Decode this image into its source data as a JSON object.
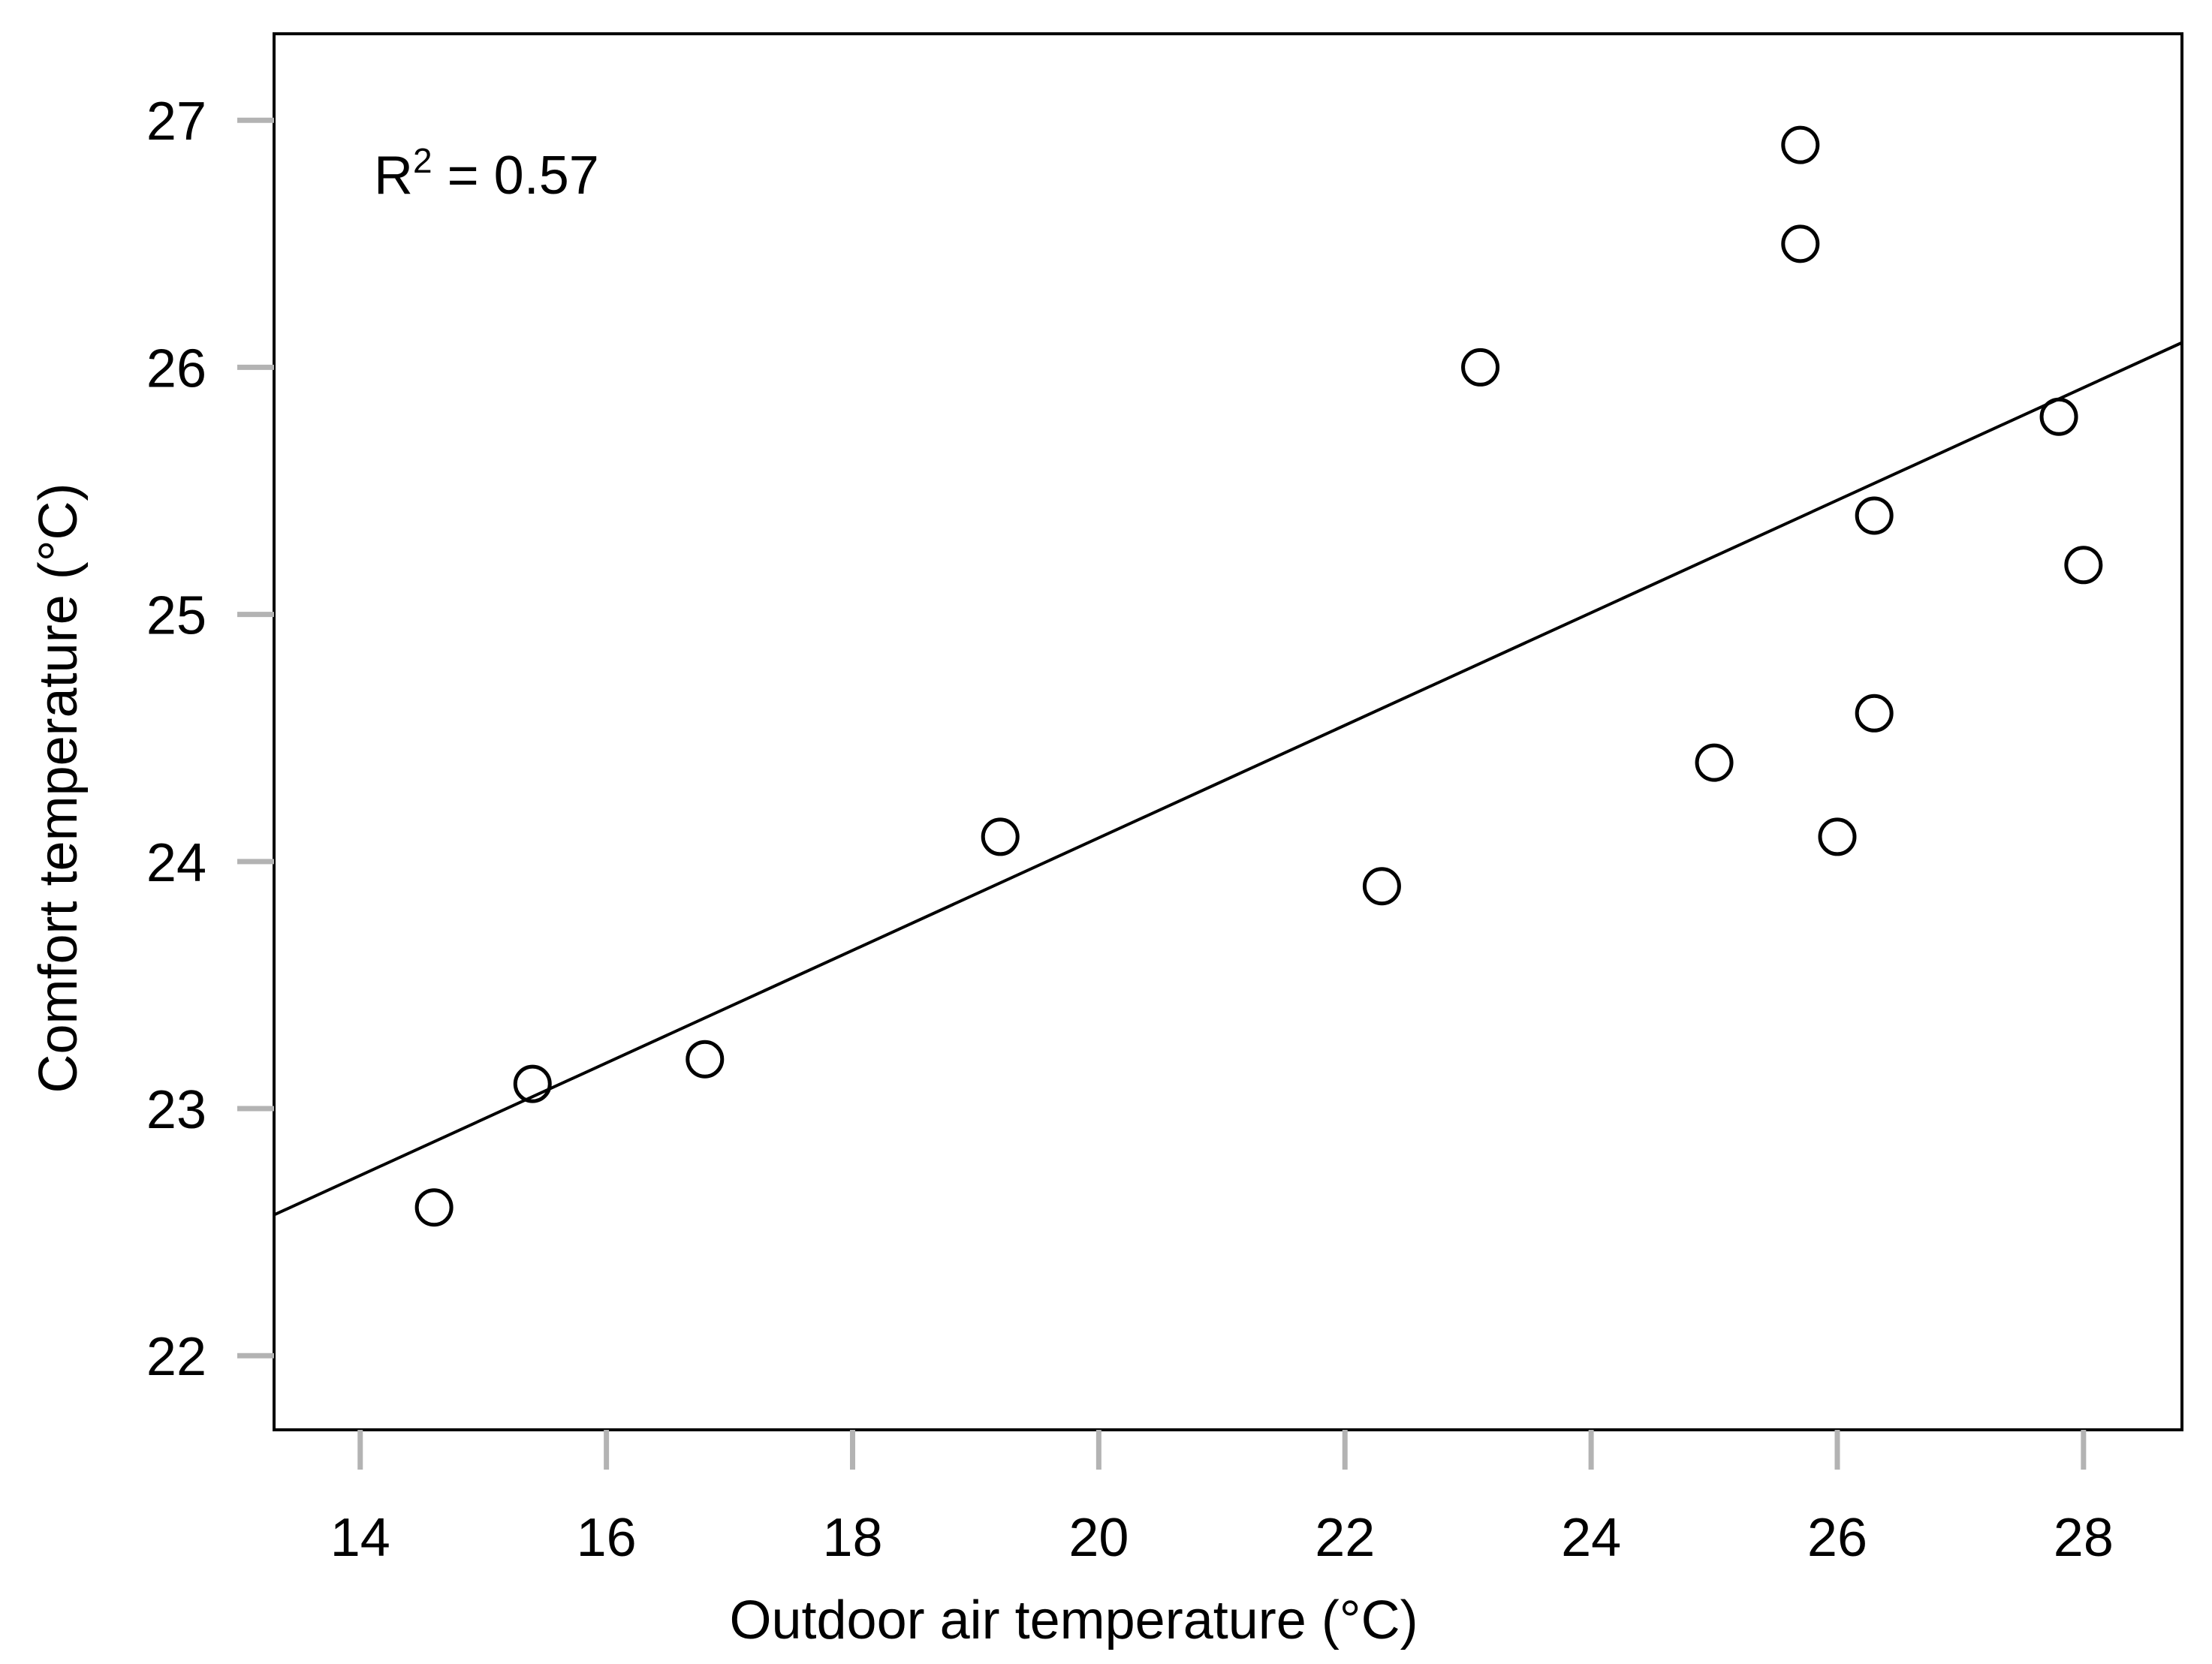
{
  "chart_data": {
    "type": "scatter",
    "title": "",
    "xlabel": "Outdoor air temperature (°C)",
    "ylabel": "Comfort temperature (°C)",
    "xlim": [
      13.3,
      28.8
    ],
    "ylim": [
      21.7,
      27.35
    ],
    "x_ticks": [
      14,
      16,
      18,
      20,
      22,
      24,
      26,
      28
    ],
    "y_ticks": [
      22,
      23,
      24,
      25,
      26,
      27
    ],
    "grid": false,
    "marker": "open-circle",
    "colors": {
      "marker": "#000000",
      "line": "#000000",
      "tick_mark": "#b3b3b3",
      "frame": "#000000"
    },
    "points": [
      {
        "x": 14.6,
        "y": 22.6
      },
      {
        "x": 15.4,
        "y": 23.1
      },
      {
        "x": 16.8,
        "y": 23.2
      },
      {
        "x": 19.2,
        "y": 24.1
      },
      {
        "x": 22.3,
        "y": 23.9
      },
      {
        "x": 23.1,
        "y": 26.0
      },
      {
        "x": 25.0,
        "y": 24.4
      },
      {
        "x": 25.7,
        "y": 26.9
      },
      {
        "x": 25.7,
        "y": 26.5
      },
      {
        "x": 26.0,
        "y": 24.1
      },
      {
        "x": 26.3,
        "y": 25.4
      },
      {
        "x": 26.3,
        "y": 24.6
      },
      {
        "x": 27.8,
        "y": 25.8
      },
      {
        "x": 28.0,
        "y": 25.2
      }
    ],
    "fit_line": {
      "x": [
        13.3,
        28.8
      ],
      "y": [
        22.57,
        26.1
      ]
    },
    "annotation": {
      "label": "R",
      "superscript": "2",
      "rest": " = 0.57"
    }
  }
}
